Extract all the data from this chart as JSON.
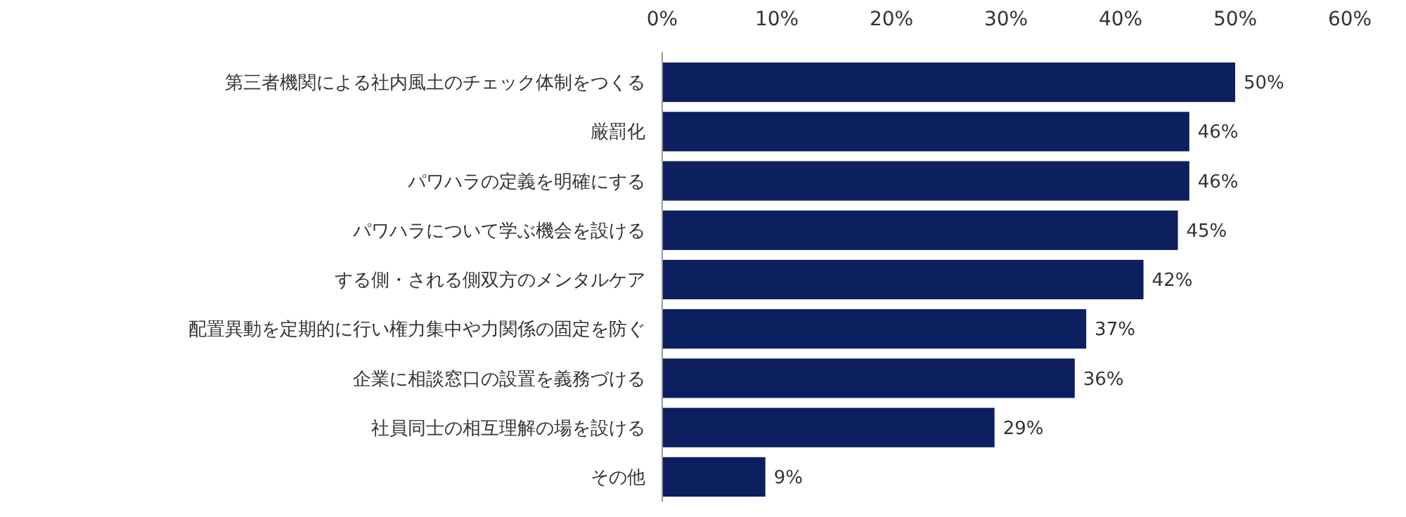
{
  "chart_data": {
    "type": "bar",
    "orientation": "horizontal",
    "categories": [
      "第三者機関による社内風土のチェック体制をつくる",
      "厳罰化",
      "パワハラの定義を明確にする",
      "パワハラについて学ぶ機会を設ける",
      "する側・される側双方のメンタルケア",
      "配置異動を定期的に行い権力集中や力関係の固定を防ぐ",
      "企業に相談窓口の設置を義務づける",
      "社員同士の相互理解の場を設ける",
      "その他"
    ],
    "values": [
      50,
      46,
      46,
      45,
      42,
      37,
      36,
      29,
      9
    ],
    "color": "#0c1f5e",
    "xlim": [
      0,
      60
    ],
    "xticks": [
      {
        "value": 0,
        "label": "0%"
      },
      {
        "value": 10,
        "label": "10%"
      },
      {
        "value": 20,
        "label": "20%"
      },
      {
        "value": 30,
        "label": "30%"
      },
      {
        "value": 40,
        "label": "40%"
      },
      {
        "value": 50,
        "label": "50%"
      },
      {
        "value": 60,
        "label": "60%"
      }
    ],
    "value_labels": [
      "50%",
      "46%",
      "46%",
      "45%",
      "42%",
      "37%",
      "36%",
      "29%",
      "9%"
    ],
    "grid": false
  }
}
